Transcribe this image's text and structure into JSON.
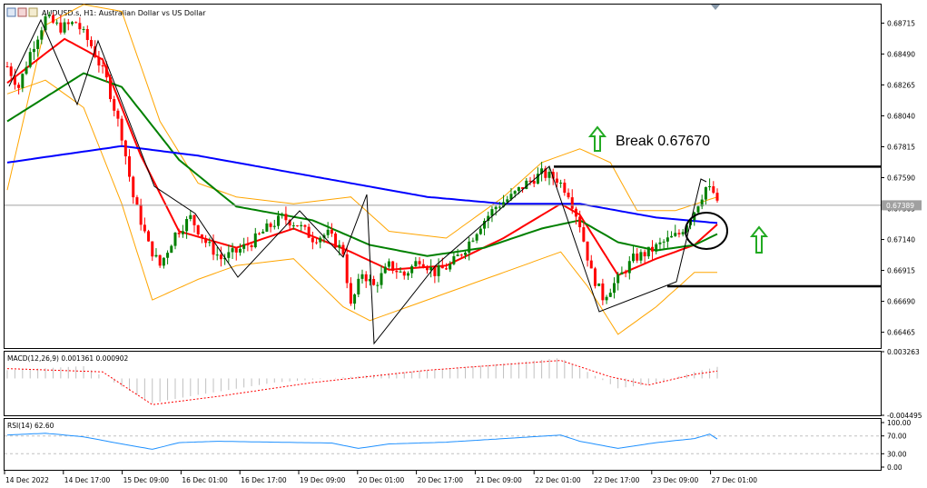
{
  "window": {
    "title": "AUDUSD.s, H1:  Australian Dollar vs US Dollar",
    "icon_names": [
      "chart-window-icon",
      "restore-icon",
      "maximize-icon"
    ]
  },
  "colors": {
    "bull_candle": "#008000",
    "bear_candle": "#ff0000",
    "ma_fast": "#ff0000",
    "ma_mid": "#008000",
    "ma_slow": "#0000ff",
    "bollinger": "#ffa500",
    "macd_hist": "#c0c0c0",
    "macd_signal": "#ff0000",
    "rsi_line": "#1e90ff",
    "annotation": "#000000",
    "arrow": "#22aa22"
  },
  "annotation": {
    "break_text": "Break 0.67670"
  },
  "price_axis": {
    "ticks": [
      "0.68715",
      "0.68490",
      "0.68265",
      "0.68040",
      "0.67815",
      "0.67590",
      "0.67365",
      "0.67140",
      "0.66915",
      "0.66690",
      "0.66465"
    ],
    "current_price": "0.67389"
  },
  "macd": {
    "label": "MACD(12,26,9) 0.001361 0.000902",
    "ticks": [
      "0.003263",
      "-0.004495"
    ]
  },
  "rsi": {
    "label": "RSI(14) 62.60",
    "ticks": [
      "100.00",
      "70.00",
      "30.00",
      "0.00"
    ]
  },
  "time_axis": {
    "labels": [
      "14 Dec 2022",
      "14 Dec 17:00",
      "15 Dec 09:00",
      "16 Dec 01:00",
      "16 Dec 17:00",
      "19 Dec 09:00",
      "20 Dec 01:00",
      "20 Dec 17:00",
      "21 Dec 09:00",
      "22 Dec 01:00",
      "22 Dec 17:00",
      "23 Dec 09:00",
      "27 Dec 01:00"
    ]
  },
  "chart_data": {
    "type": "candlestick",
    "symbol": "AUDUSD.s",
    "timeframe": "H1",
    "ylim": [
      0.6635,
      0.6885
    ],
    "price_keypoints": [
      [
        0,
        0.684
      ],
      [
        3,
        0.6825
      ],
      [
        6,
        0.685
      ],
      [
        10,
        0.6875
      ],
      [
        14,
        0.6868
      ],
      [
        18,
        0.6872
      ],
      [
        22,
        0.6855
      ],
      [
        26,
        0.683
      ],
      [
        30,
        0.679
      ],
      [
        33,
        0.6745
      ],
      [
        37,
        0.671
      ],
      [
        40,
        0.6695
      ],
      [
        44,
        0.6718
      ],
      [
        48,
        0.673
      ],
      [
        52,
        0.6712
      ],
      [
        56,
        0.67
      ],
      [
        60,
        0.6705
      ],
      [
        64,
        0.6712
      ],
      [
        68,
        0.6722
      ],
      [
        72,
        0.673
      ],
      [
        76,
        0.6725
      ],
      [
        80,
        0.6715
      ],
      [
        84,
        0.6718
      ],
      [
        88,
        0.6705
      ],
      [
        90,
        0.6665
      ],
      [
        93,
        0.669
      ],
      [
        96,
        0.668
      ],
      [
        100,
        0.6695
      ],
      [
        104,
        0.6688
      ],
      [
        108,
        0.67
      ],
      [
        112,
        0.669
      ],
      [
        116,
        0.6695
      ],
      [
        120,
        0.6708
      ],
      [
        124,
        0.6725
      ],
      [
        128,
        0.6738
      ],
      [
        132,
        0.6745
      ],
      [
        136,
        0.6755
      ],
      [
        140,
        0.6762
      ],
      [
        144,
        0.6758
      ],
      [
        147,
        0.6748
      ],
      [
        150,
        0.6725
      ],
      [
        153,
        0.669
      ],
      [
        156,
        0.6672
      ],
      [
        160,
        0.6685
      ],
      [
        164,
        0.67
      ],
      [
        168,
        0.6705
      ],
      [
        172,
        0.6712
      ],
      [
        176,
        0.6718
      ],
      [
        180,
        0.6735
      ],
      [
        183,
        0.6752
      ],
      [
        185,
        0.6748
      ],
      [
        186,
        0.6739
      ]
    ],
    "moving_averages": [
      {
        "color": "red",
        "keypoints": [
          [
            0,
            0.6828
          ],
          [
            15,
            0.686
          ],
          [
            25,
            0.6845
          ],
          [
            35,
            0.6775
          ],
          [
            45,
            0.672
          ],
          [
            60,
            0.6708
          ],
          [
            75,
            0.6722
          ],
          [
            90,
            0.6705
          ],
          [
            100,
            0.6692
          ],
          [
            115,
            0.6695
          ],
          [
            130,
            0.6715
          ],
          [
            145,
            0.674
          ],
          [
            150,
            0.6732
          ],
          [
            160,
            0.6688
          ],
          [
            170,
            0.67
          ],
          [
            180,
            0.671
          ],
          [
            186,
            0.6725
          ]
        ]
      },
      {
        "color": "green",
        "keypoints": [
          [
            0,
            0.68
          ],
          [
            20,
            0.6835
          ],
          [
            30,
            0.6825
          ],
          [
            45,
            0.6772
          ],
          [
            60,
            0.6738
          ],
          [
            80,
            0.6728
          ],
          [
            95,
            0.671
          ],
          [
            110,
            0.6702
          ],
          [
            125,
            0.6708
          ],
          [
            140,
            0.6722
          ],
          [
            150,
            0.6728
          ],
          [
            160,
            0.6712
          ],
          [
            170,
            0.6706
          ],
          [
            180,
            0.671
          ],
          [
            186,
            0.6718
          ]
        ]
      },
      {
        "color": "blue",
        "keypoints": [
          [
            0,
            0.677
          ],
          [
            30,
            0.6782
          ],
          [
            50,
            0.6775
          ],
          [
            70,
            0.6765
          ],
          [
            90,
            0.6755
          ],
          [
            110,
            0.6745
          ],
          [
            130,
            0.674
          ],
          [
            150,
            0.674
          ],
          [
            170,
            0.673
          ],
          [
            186,
            0.6726
          ]
        ]
      }
    ],
    "bollinger": {
      "upper": [
        [
          0,
          0.675
        ],
        [
          10,
          0.687
        ],
        [
          20,
          0.6885
        ],
        [
          30,
          0.688
        ],
        [
          40,
          0.68
        ],
        [
          50,
          0.6755
        ],
        [
          60,
          0.6745
        ],
        [
          75,
          0.674
        ],
        [
          90,
          0.6745
        ],
        [
          100,
          0.672
        ],
        [
          115,
          0.6715
        ],
        [
          130,
          0.6745
        ],
        [
          140,
          0.677
        ],
        [
          150,
          0.678
        ],
        [
          158,
          0.677
        ],
        [
          165,
          0.6735
        ],
        [
          175,
          0.6735
        ],
        [
          186,
          0.6745
        ]
      ],
      "lower": [
        [
          0,
          0.682
        ],
        [
          10,
          0.683
        ],
        [
          20,
          0.681
        ],
        [
          30,
          0.674
        ],
        [
          38,
          0.667
        ],
        [
          50,
          0.6685
        ],
        [
          60,
          0.6695
        ],
        [
          75,
          0.67
        ],
        [
          88,
          0.6665
        ],
        [
          95,
          0.6655
        ],
        [
          105,
          0.6665
        ],
        [
          120,
          0.668
        ],
        [
          135,
          0.6695
        ],
        [
          145,
          0.6705
        ],
        [
          152,
          0.668
        ],
        [
          160,
          0.6645
        ],
        [
          170,
          0.6665
        ],
        [
          180,
          0.669
        ],
        [
          186,
          0.669
        ]
      ]
    },
    "support_level": 0.668,
    "resistance_level": 0.6767,
    "macd_hist": [
      [
        0,
        0.001
      ],
      [
        20,
        0.0015
      ],
      [
        30,
        -0.001
      ],
      [
        38,
        -0.003
      ],
      [
        50,
        -0.002
      ],
      [
        70,
        -0.0005
      ],
      [
        90,
        0.0002
      ],
      [
        110,
        0.001
      ],
      [
        130,
        0.0018
      ],
      [
        145,
        0.0025
      ],
      [
        152,
        0.0008
      ],
      [
        160,
        -0.0012
      ],
      [
        170,
        -0.0006
      ],
      [
        180,
        0.0008
      ],
      [
        186,
        0.0014
      ]
    ],
    "macd_signal": [
      [
        0,
        0.0012
      ],
      [
        25,
        0.0008
      ],
      [
        38,
        -0.0032
      ],
      [
        55,
        -0.0022
      ],
      [
        80,
        -0.0005
      ],
      [
        110,
        0.001
      ],
      [
        145,
        0.0022
      ],
      [
        158,
        0.0002
      ],
      [
        168,
        -0.0008
      ],
      [
        180,
        0.0005
      ],
      [
        186,
        0.0009
      ]
    ],
    "rsi": [
      [
        0,
        72
      ],
      [
        10,
        76
      ],
      [
        20,
        68
      ],
      [
        30,
        52
      ],
      [
        38,
        40
      ],
      [
        45,
        55
      ],
      [
        55,
        58
      ],
      [
        70,
        56
      ],
      [
        85,
        54
      ],
      [
        92,
        42
      ],
      [
        100,
        52
      ],
      [
        115,
        56
      ],
      [
        130,
        64
      ],
      [
        145,
        72
      ],
      [
        150,
        58
      ],
      [
        160,
        42
      ],
      [
        170,
        55
      ],
      [
        180,
        64
      ],
      [
        184,
        74
      ],
      [
        186,
        63
      ]
    ]
  }
}
